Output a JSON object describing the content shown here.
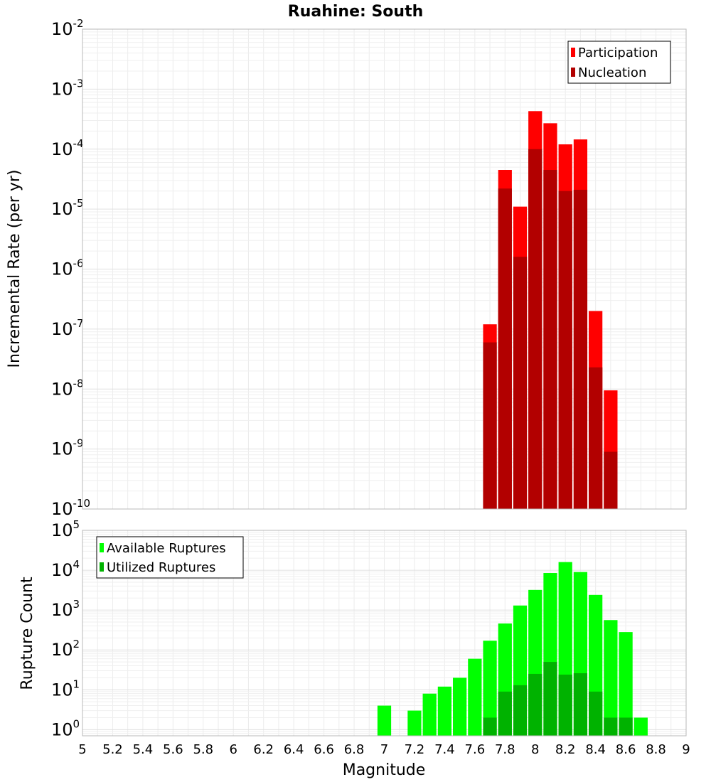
{
  "chart_data": [
    {
      "type": "bar",
      "title": "Ruahine: South",
      "xlabel": "",
      "ylabel": "Incremental Rate (per yr)",
      "yscale": "log",
      "ylim": [
        1e-10,
        0.01
      ],
      "xlim": [
        5,
        9
      ],
      "grid": true,
      "legend_position": "top-right",
      "y_tick_exponents": [
        "-2",
        "-3",
        "-4",
        "-5",
        "-6",
        "-7",
        "-8",
        "-9",
        "-10"
      ],
      "x": [
        7.7,
        7.8,
        7.9,
        8.0,
        8.1,
        8.2,
        8.3,
        8.4,
        8.5
      ],
      "series": [
        {
          "name": "Participation",
          "color": "#ff0000",
          "values": [
            1.2e-07,
            4.5e-05,
            1.1e-05,
            0.00043,
            0.00027,
            0.00012,
            0.000145,
            2e-07,
            9.5e-09
          ]
        },
        {
          "name": "Nucleation",
          "color": "#b20000",
          "values": [
            6e-08,
            2.2e-05,
            1.6e-06,
            0.0001,
            4.5e-05,
            2e-05,
            2.1e-05,
            2.3e-08,
            9e-10
          ]
        }
      ]
    },
    {
      "type": "bar",
      "title": "",
      "xlabel": "Magnitude",
      "ylabel": "Rupture Count",
      "yscale": "log",
      "ylim": [
        0.7,
        100000.0
      ],
      "xlim": [
        5,
        9
      ],
      "grid": true,
      "legend_position": "top-left",
      "y_tick_exponents": [
        "5",
        "4",
        "3",
        "2",
        "1",
        "0"
      ],
      "x_ticks": [
        "5",
        "5.2",
        "5.4",
        "5.6",
        "5.8",
        "6",
        "6.2",
        "6.4",
        "6.6",
        "6.8",
        "7",
        "7.2",
        "7.4",
        "7.6",
        "7.8",
        "8",
        "8.2",
        "8.4",
        "8.6",
        "8.8",
        "9"
      ],
      "x": [
        7.0,
        7.2,
        7.3,
        7.4,
        7.5,
        7.6,
        7.7,
        7.8,
        7.9,
        8.0,
        8.1,
        8.2,
        8.3,
        8.4,
        8.5,
        8.6,
        8.7
      ],
      "series": [
        {
          "name": "Available Ruptures",
          "color": "#00ff00",
          "values": [
            4,
            3,
            8,
            12,
            20,
            60,
            170,
            460,
            1300,
            3200,
            8500,
            16000,
            9000,
            2400,
            560,
            280,
            2
          ]
        },
        {
          "name": "Utilized Ruptures",
          "color": "#00b200",
          "values": [
            0,
            0,
            0,
            0,
            0,
            0,
            2,
            9,
            13,
            25,
            50,
            24,
            26,
            9,
            2,
            2,
            0
          ]
        }
      ]
    }
  ]
}
